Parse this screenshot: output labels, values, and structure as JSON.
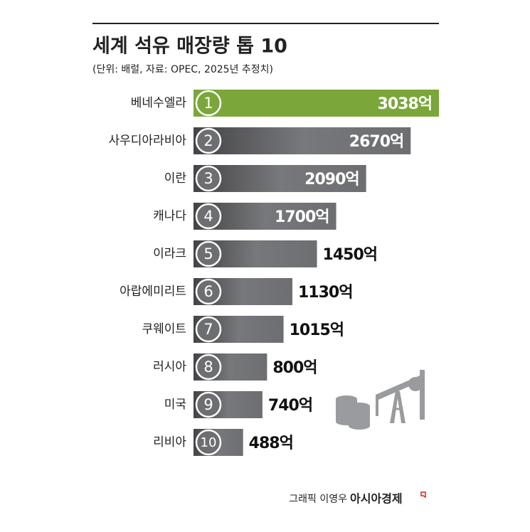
{
  "chart_data": {
    "type": "bar",
    "orientation": "horizontal",
    "title": "세계 석유 매장량 톱 10",
    "subtitle": "(단위: 배럴, 자료: OPEC, 2025년 추정치)",
    "categories": [
      "베네수엘라",
      "사우디아라비아",
      "이란",
      "캐나다",
      "이라크",
      "아랍에미리트",
      "쿠웨이트",
      "러시아",
      "미국",
      "리비아"
    ],
    "ranks": [
      "1",
      "2",
      "3",
      "4",
      "5",
      "6",
      "7",
      "8",
      "9",
      "10"
    ],
    "values": [
      3038,
      2670,
      2090,
      1700,
      1450,
      1130,
      1015,
      800,
      740,
      488
    ],
    "value_labels": [
      "3038억",
      "2670억",
      "2090억",
      "1700억",
      "1450억",
      "1130억",
      "1015억",
      "800억",
      "740억",
      "488억"
    ],
    "colors": [
      "#7aa63a",
      "#6d6e71",
      "#6d6e71",
      "#6d6e71",
      "#6d6e71",
      "#6d6e71",
      "#6d6e71",
      "#6d6e71",
      "#6d6e71",
      "#6d6e71"
    ],
    "credit": "그래픽 이영우",
    "source_brand": "아시아경제"
  }
}
